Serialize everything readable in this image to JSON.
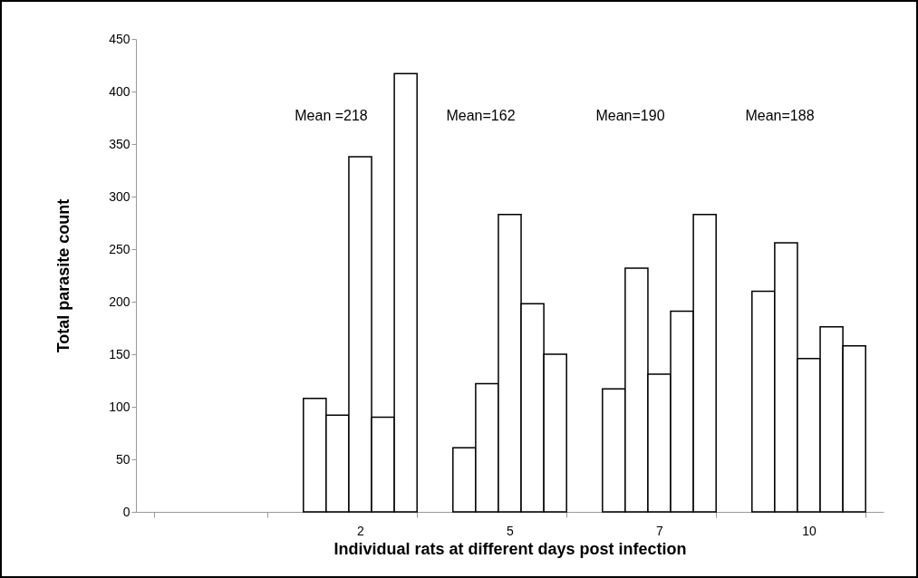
{
  "chart_data": {
    "type": "bar",
    "xlabel": "Individual rats at different days post infection",
    "ylabel": "Total parasite count",
    "categories": [
      null,
      "2",
      "5",
      "7",
      "10"
    ],
    "series": [
      {
        "color": "#ffffff",
        "values": [
          null,
          108,
          61,
          117,
          210
        ]
      },
      {
        "color": "#ffffff",
        "values": [
          null,
          92,
          122,
          232,
          256
        ]
      },
      {
        "color": "#ffffff",
        "values": [
          null,
          338,
          283,
          131,
          146
        ]
      },
      {
        "color": "#ffffff",
        "values": [
          null,
          90,
          198,
          191,
          176
        ]
      },
      {
        "color": "#ffffff",
        "values": [
          null,
          417,
          150,
          283,
          158
        ]
      }
    ],
    "ylim": [
      0,
      450
    ],
    "yticks": [
      0,
      50,
      100,
      150,
      200,
      250,
      300,
      350,
      400,
      450
    ],
    "grid": false,
    "legend": false,
    "annotations": [
      "Mean =218",
      "Mean=162",
      "Mean=190",
      "Mean=188"
    ]
  }
}
